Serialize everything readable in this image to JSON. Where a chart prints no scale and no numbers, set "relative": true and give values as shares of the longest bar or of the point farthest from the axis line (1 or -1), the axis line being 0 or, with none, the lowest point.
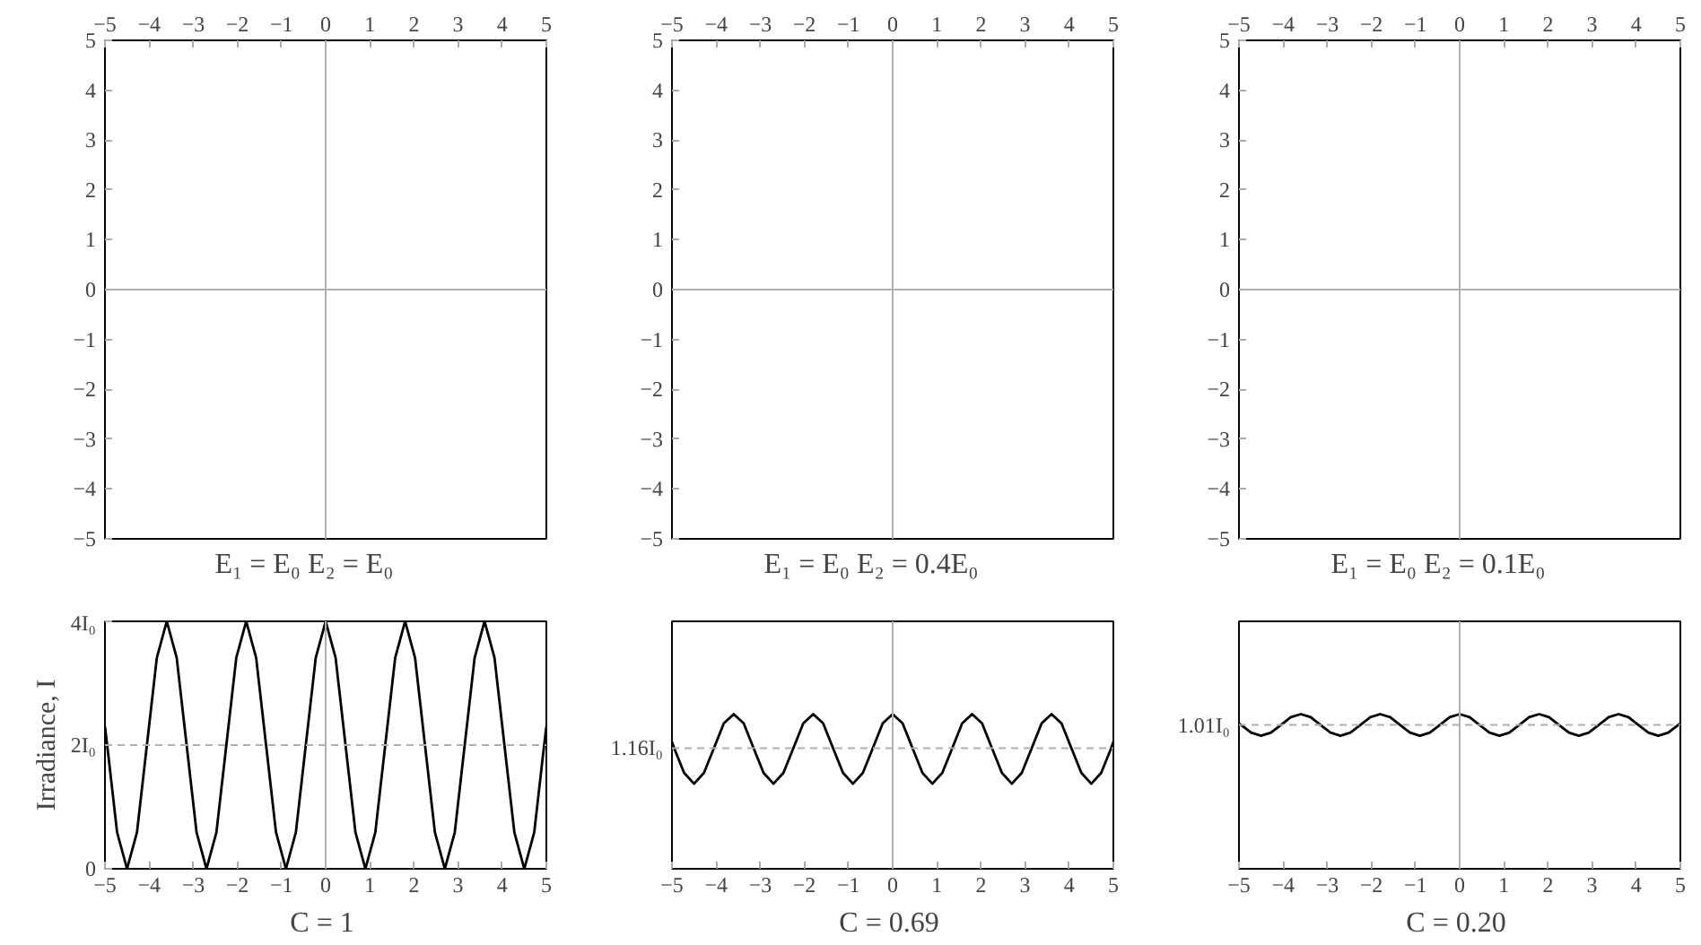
{
  "chart_data": [
    {
      "type": "scatter",
      "xlabel": "E₁ = E₀       E₂ = E₀",
      "xlim": [
        -5,
        5
      ],
      "ylim": [
        -5,
        5
      ],
      "xticks": [
        -5,
        -4,
        -3,
        -2,
        -1,
        0,
        1,
        2,
        3,
        4,
        5
      ],
      "yticks": [
        -5,
        -4,
        -3,
        -2,
        -1,
        0,
        1,
        2,
        3,
        4,
        5
      ],
      "ref_lines": [
        {
          "axis": "x",
          "value": 0,
          "color": "#b0b0b0"
        },
        {
          "axis": "y",
          "value": 0,
          "color": "#b0b0b0"
        }
      ]
    },
    {
      "type": "scatter",
      "xlabel": "E₁ = E₀       E₂ = 0.4E₀",
      "xlim": [
        -5,
        5
      ],
      "ylim": [
        -5,
        5
      ],
      "xticks": [
        -5,
        -4,
        -3,
        -2,
        -1,
        0,
        1,
        2,
        3,
        4,
        5
      ],
      "yticks": [
        -5,
        -4,
        -3,
        -2,
        -1,
        0,
        1,
        2,
        3,
        4,
        5
      ],
      "ref_lines": [
        {
          "axis": "x",
          "value": 0,
          "color": "#b0b0b0"
        },
        {
          "axis": "y",
          "value": 0,
          "color": "#b0b0b0"
        }
      ]
    },
    {
      "type": "scatter",
      "xlabel": "E₁ = E₀       E₂ = 0.1E₀",
      "xlim": [
        -5,
        5
      ],
      "ylim": [
        -5,
        5
      ],
      "xticks": [
        -5,
        -4,
        -3,
        -2,
        -1,
        0,
        1,
        2,
        3,
        4,
        5
      ],
      "yticks": [
        -5,
        -4,
        -3,
        -2,
        -1,
        0,
        1,
        2,
        3,
        4,
        5
      ],
      "ref_lines": [
        {
          "axis": "x",
          "value": 0,
          "color": "#b0b0b0"
        },
        {
          "axis": "y",
          "value": 0,
          "color": "#b0b0b0"
        }
      ]
    },
    {
      "type": "line",
      "xlabel": "C  = 1",
      "ylabel": "Irradiance, I",
      "xlim": [
        -5,
        5
      ],
      "ylim": [
        0,
        4
      ],
      "xticks": [
        -5,
        -4,
        -3,
        -2,
        -1,
        0,
        1,
        2,
        3,
        4,
        5
      ],
      "yticks": [
        0,
        {
          "value": 2,
          "label": "2I₀"
        },
        {
          "value": 4,
          "label": "4I₀"
        }
      ],
      "x": [
        -5,
        -4.95,
        -4.725,
        -4.5,
        -4.275,
        -4.05,
        -3.825,
        -3.6,
        -3.375,
        -3.15,
        -2.925,
        -2.7,
        -2.475,
        -2.25,
        -2.025,
        -1.8,
        -1.575,
        -1.35,
        -1.125,
        -0.9,
        -0.675,
        -0.45,
        -0.225,
        0,
        0.225,
        0.45,
        0.675,
        0.9,
        1.125,
        1.35,
        1.575,
        1.8,
        2.025,
        2.25,
        2.475,
        2.7,
        2.925,
        3.15,
        3.375,
        3.6,
        3.825,
        4.05,
        4.275,
        4.5,
        4.725,
        4.95,
        5
      ],
      "series": [
        {
          "color": "#000000",
          "values": [
            2.3,
            2,
            0.59,
            0,
            0.59,
            2,
            3.41,
            4,
            3.41,
            2,
            0.59,
            0,
            0.59,
            2,
            3.41,
            4,
            3.41,
            2,
            0.59,
            0,
            0.59,
            2,
            3.41,
            4,
            3.41,
            2,
            0.59,
            0,
            0.59,
            2,
            3.41,
            4,
            3.41,
            2,
            0.59,
            0,
            0.59,
            2,
            3.41,
            4,
            3.41,
            2,
            0.59,
            0,
            0.59,
            2,
            2.3
          ]
        }
      ],
      "ref_lines": [
        {
          "axis": "x",
          "value": 0,
          "color": "#b0b0b0"
        },
        {
          "axis": "y",
          "value": 2,
          "color": "#b0b0b0",
          "line_style": "dashed"
        }
      ]
    },
    {
      "type": "line",
      "xlabel": "C  = 0.69",
      "relative": true,
      "xlim": [
        -5,
        5
      ],
      "xticks": [
        -5,
        -4,
        -3,
        -2,
        -1,
        0,
        1,
        2,
        3,
        4,
        5
      ],
      "x": [
        -5,
        -4.95,
        -4.725,
        -4.5,
        -4.275,
        -4.05,
        -3.825,
        -3.6,
        -3.375,
        -3.15,
        -2.925,
        -2.7,
        -2.475,
        -2.25,
        -2.025,
        -1.8,
        -1.575,
        -1.35,
        -1.125,
        -0.9,
        -0.675,
        -0.45,
        -0.225,
        0,
        0.225,
        0.45,
        0.675,
        0.9,
        1.125,
        1.35,
        1.575,
        1.8,
        2.025,
        2.25,
        2.475,
        2.7,
        2.925,
        3.15,
        3.375,
        3.6,
        3.825,
        4.05,
        4.275,
        4.5,
        4.725,
        4.95,
        5
      ],
      "series": [
        {
          "color": "#000000",
          "values": [
            0.82,
            0.78,
            0.62,
            0.55,
            0.62,
            0.78,
            0.94,
            1,
            0.94,
            0.78,
            0.62,
            0.55,
            0.62,
            0.78,
            0.94,
            1,
            0.94,
            0.78,
            0.62,
            0.55,
            0.62,
            0.78,
            0.94,
            1,
            0.94,
            0.78,
            0.62,
            0.55,
            0.62,
            0.78,
            0.94,
            1,
            0.94,
            0.78,
            0.62,
            0.55,
            0.62,
            0.78,
            0.94,
            1,
            0.94,
            0.78,
            0.62,
            0.55,
            0.62,
            0.78,
            0.82
          ]
        }
      ],
      "ref_lines": [
        {
          "axis": "x",
          "value": 0,
          "color": "#b0b0b0"
        },
        {
          "axis": "y",
          "value": 0.78,
          "color": "#b0b0b0",
          "line_style": "dashed",
          "label": "1.16I₀"
        }
      ]
    },
    {
      "type": "line",
      "xlabel": "C  = 0.20",
      "relative": true,
      "xlim": [
        -5,
        5
      ],
      "xticks": [
        -5,
        -4,
        -3,
        -2,
        -1,
        0,
        1,
        2,
        3,
        4,
        5
      ],
      "x": [
        -5,
        -4.95,
        -4.725,
        -4.5,
        -4.275,
        -4.05,
        -3.825,
        -3.6,
        -3.375,
        -3.15,
        -2.925,
        -2.7,
        -2.475,
        -2.25,
        -2.025,
        -1.8,
        -1.575,
        -1.35,
        -1.125,
        -0.9,
        -0.675,
        -0.45,
        -0.225,
        0,
        0.225,
        0.45,
        0.675,
        0.9,
        1.125,
        1.35,
        1.575,
        1.8,
        2.025,
        2.25,
        2.475,
        2.7,
        2.925,
        3.15,
        3.375,
        3.6,
        3.825,
        4.05,
        4.275,
        4.5,
        4.725,
        4.95,
        5
      ],
      "series": [
        {
          "color": "#000000",
          "values": [
            0.94,
            0.93,
            0.88,
            0.86,
            0.88,
            0.93,
            0.98,
            1,
            0.98,
            0.93,
            0.88,
            0.86,
            0.88,
            0.93,
            0.98,
            1,
            0.98,
            0.93,
            0.88,
            0.86,
            0.88,
            0.93,
            0.98,
            1,
            0.98,
            0.93,
            0.88,
            0.86,
            0.88,
            0.93,
            0.98,
            1,
            0.98,
            0.93,
            0.88,
            0.86,
            0.88,
            0.93,
            0.98,
            1,
            0.98,
            0.93,
            0.88,
            0.86,
            0.88,
            0.93,
            0.94
          ]
        }
      ],
      "ref_lines": [
        {
          "axis": "x",
          "value": 0,
          "color": "#b0b0b0"
        },
        {
          "axis": "y",
          "value": 0.93,
          "color": "#b0b0b0",
          "line_style": "dashed",
          "label": "1.01I₀"
        }
      ]
    }
  ]
}
